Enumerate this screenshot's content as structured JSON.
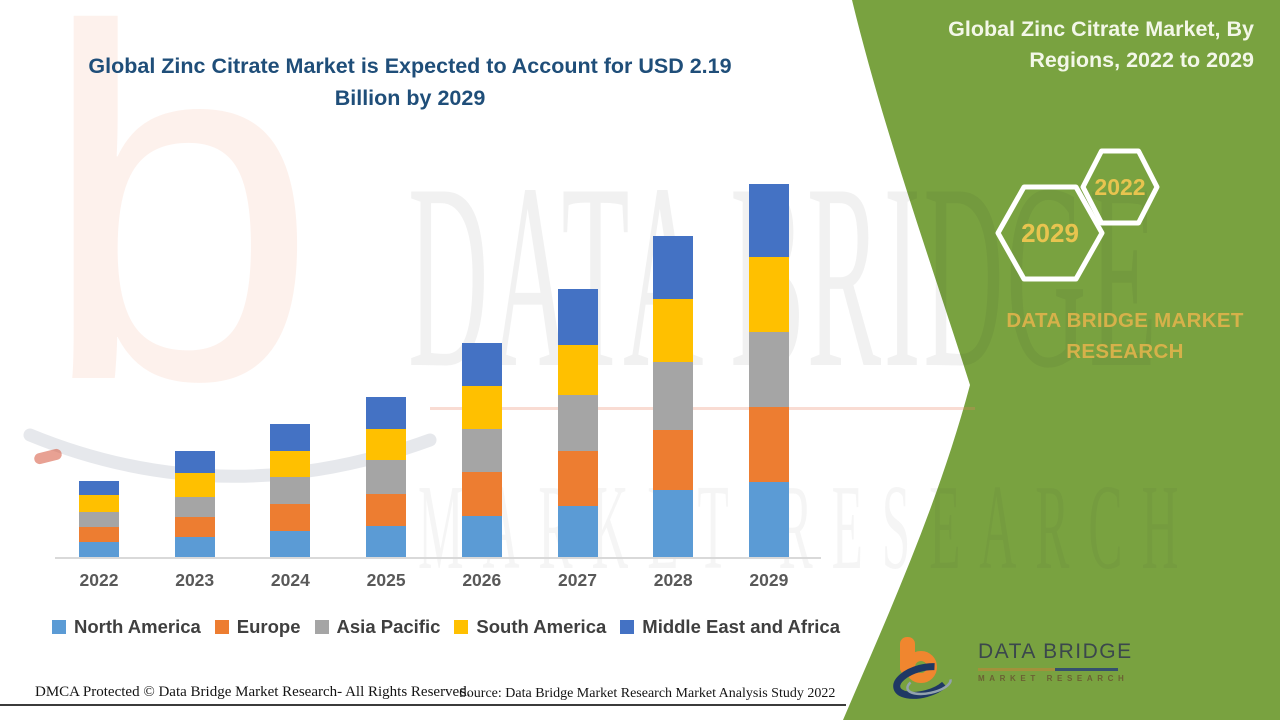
{
  "header": {
    "title": "Global Zinc Citrate Market is Expected to Account for USD 2.19 Billion by 2029"
  },
  "chart_data": {
    "type": "bar",
    "stacked": true,
    "title": "Global Zinc Citrate Market is Expected to Account for USD 2.19 Billion by 2029",
    "unit": "USD Billion (estimated from bar heights)",
    "categories": [
      "2022",
      "2023",
      "2024",
      "2025",
      "2026",
      "2027",
      "2028",
      "2029"
    ],
    "series": [
      {
        "name": "North America",
        "color": "#5B9BD5",
        "values": [
          0.09,
          0.12,
          0.15,
          0.18,
          0.24,
          0.3,
          0.39,
          0.44
        ]
      },
      {
        "name": "Europe",
        "color": "#ED7D31",
        "values": [
          0.09,
          0.12,
          0.16,
          0.19,
          0.26,
          0.32,
          0.35,
          0.44
        ]
      },
      {
        "name": "Asia Pacific",
        "color": "#A5A5A5",
        "values": [
          0.09,
          0.12,
          0.16,
          0.2,
          0.25,
          0.33,
          0.4,
          0.44
        ]
      },
      {
        "name": "South America",
        "color": "#FFC000",
        "values": [
          0.1,
          0.14,
          0.15,
          0.18,
          0.25,
          0.29,
          0.37,
          0.44
        ]
      },
      {
        "name": "Middle East and Africa",
        "color": "#4472C4",
        "values": [
          0.08,
          0.13,
          0.16,
          0.19,
          0.25,
          0.33,
          0.37,
          0.43
        ]
      }
    ],
    "totals_estimated": [
      0.45,
      0.63,
      0.78,
      0.94,
      1.25,
      1.57,
      1.88,
      2.19
    ],
    "legend_position": "bottom",
    "y_axis_visible": false,
    "grid": false
  },
  "side_panel": {
    "title": "Global Zinc Citrate Market, By Regions, 2022 to 2029",
    "hexagon_large_label": "2029",
    "hexagon_small_label": "2022",
    "brand_text": "DATA BRIDGE MARKET RESEARCH",
    "background_color": "#79A240",
    "gold_color": "#D6B14A"
  },
  "watermark": {
    "logo_glyph": "b",
    "line1": "DATA BRIDGE",
    "line2": "MARKET RESEARCH"
  },
  "footer": {
    "dmca": "DMCA Protected © Data Bridge Market Research- All Rights Reserved.",
    "source": "Source: Data Bridge Market Research Market Analysis Study 2022"
  },
  "logo": {
    "title": "DATA BRIDGE",
    "subtitle": "MARKET RESEARCH"
  }
}
